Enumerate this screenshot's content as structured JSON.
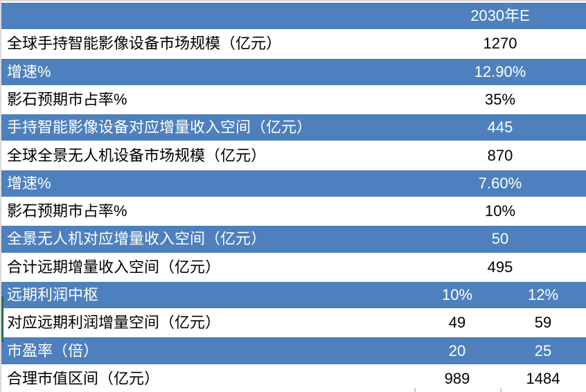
{
  "colors": {
    "row_blue": "#4d80bd",
    "row_white": "#ffffff",
    "text_on_blue": "#ffffff",
    "text_on_white": "#000000",
    "outer_border_gray": "#d9d9d9",
    "green_marker": "#217346",
    "tick_gray": "#c9c9c9"
  },
  "chart_data": {
    "type": "table",
    "title": "",
    "columns": [
      "",
      "2030年E"
    ],
    "rows": [
      {
        "label": "",
        "values": [
          "2030年E"
        ],
        "variant": "blue"
      },
      {
        "label": "全球手持智能影像设备市场规模（亿元）",
        "values": [
          "1270"
        ],
        "variant": "white"
      },
      {
        "label": "增速%",
        "values": [
          "12.90%"
        ],
        "variant": "blue"
      },
      {
        "label": "影石预期市占率%",
        "values": [
          "35%"
        ],
        "variant": "white"
      },
      {
        "label": "手持智能影像设备对应增量收入空间（亿元）",
        "values": [
          "445"
        ],
        "variant": "blue"
      },
      {
        "label": "全球全景无人机设备市场规模（亿元）",
        "values": [
          "870"
        ],
        "variant": "white"
      },
      {
        "label": "增速%",
        "values": [
          "7.60%"
        ],
        "variant": "blue"
      },
      {
        "label": "影石预期市占率%",
        "values": [
          "10%"
        ],
        "variant": "white"
      },
      {
        "label": "全景无人机对应增量收入空间（亿元）",
        "values": [
          "50"
        ],
        "variant": "blue"
      },
      {
        "label": "合计远期增量收入空间（亿元）",
        "values": [
          "495"
        ],
        "variant": "white"
      },
      {
        "label": "远期利润中枢",
        "values": [
          "10%",
          "12%"
        ],
        "variant": "blue"
      },
      {
        "label": "对应远期利润增量空间（亿元）",
        "values": [
          "49",
          "59"
        ],
        "variant": "white"
      },
      {
        "label": "市盈率（倍）",
        "values": [
          "20",
          "25"
        ],
        "variant": "blue"
      },
      {
        "label": "合理市值区间（亿元）",
        "values": [
          "989",
          "1484"
        ],
        "variant": "white"
      }
    ]
  }
}
